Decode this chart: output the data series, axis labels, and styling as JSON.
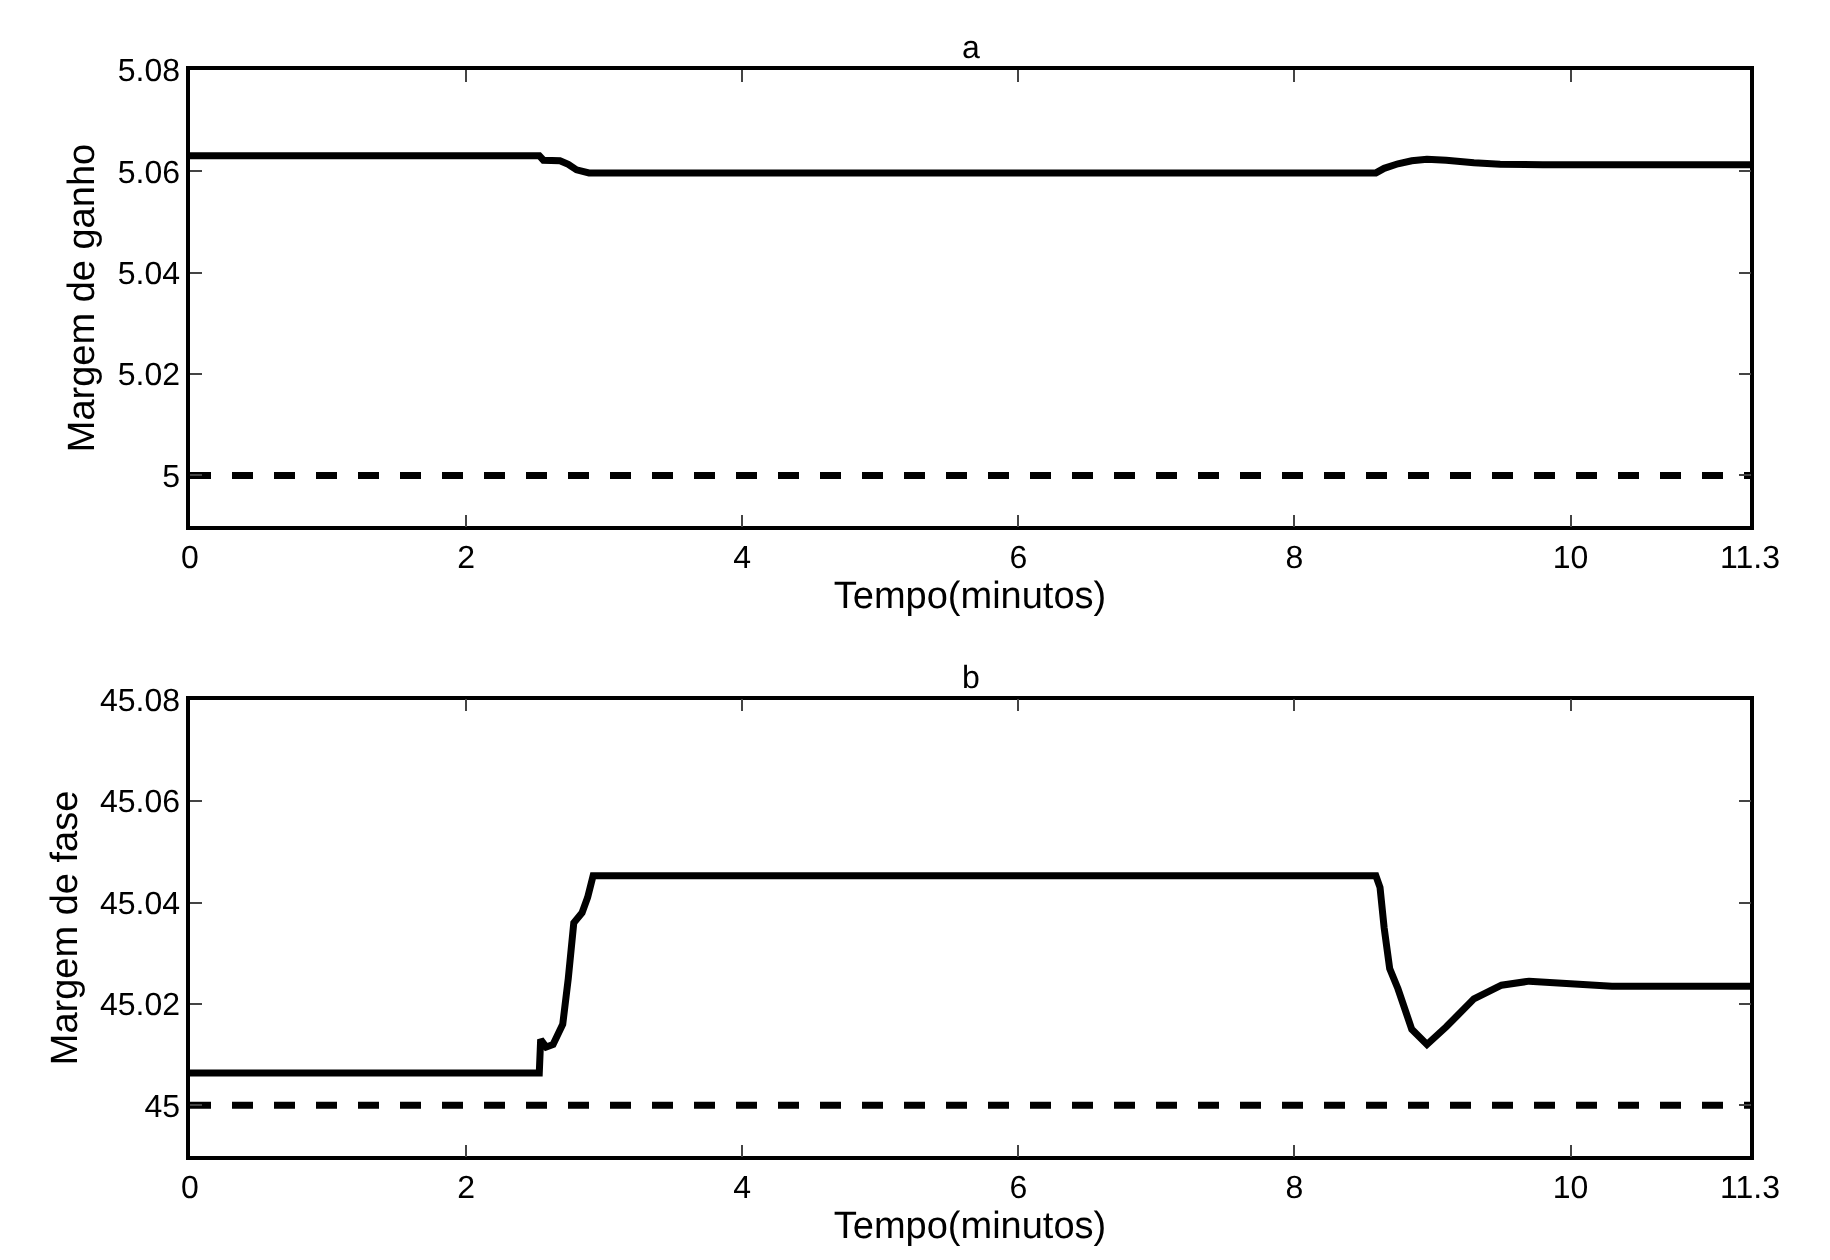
{
  "chart_data": [
    {
      "type": "line",
      "title": "a",
      "xlabel": "Tempo(minutos)",
      "ylabel": "Margem de ganho",
      "xlim": [
        0,
        11.3
      ],
      "xticks": [
        0,
        2,
        4,
        6,
        8,
        10,
        11.3
      ],
      "ylim": [
        4.99,
        5.08
      ],
      "yticks": [
        5,
        5.02,
        5.04,
        5.06,
        5.08
      ],
      "marker": "none",
      "series": [
        {
          "color": "#000000",
          "line_style": "solid",
          "x": [
            0,
            1,
            2,
            2.53,
            2.56,
            2.68,
            2.74,
            2.8,
            2.89,
            3.5,
            5,
            7,
            8.59,
            8.65,
            8.75,
            8.85,
            8.96,
            9.1,
            9.3,
            9.49,
            9.8,
            10.3,
            11.3
          ],
          "values": [
            5.0631,
            5.0631,
            5.0631,
            5.0631,
            5.0622,
            5.0621,
            5.0614,
            5.0603,
            5.0597,
            5.0597,
            5.0597,
            5.0597,
            5.0597,
            5.0606,
            5.0615,
            5.0621,
            5.0624,
            5.0622,
            5.0617,
            5.0614,
            5.0613,
            5.0613,
            5.0613
          ]
        }
      ],
      "ref_lines": [
        {
          "axis": "y",
          "value": 5,
          "color": "#000000",
          "line_style": "dashed"
        }
      ]
    },
    {
      "type": "line",
      "title": "b",
      "xlabel": "Tempo(minutos)",
      "ylabel": "Margem de fase",
      "xlim": [
        0,
        11.3
      ],
      "xticks": [
        0,
        2,
        4,
        6,
        8,
        10,
        11.3
      ],
      "ylim": [
        44.99,
        45.08
      ],
      "yticks": [
        45,
        45.02,
        45.04,
        45.06,
        45.08
      ],
      "marker": "none",
      "series": [
        {
          "color": "#000000",
          "line_style": "solid",
          "x": [
            0,
            1,
            2,
            2.53,
            2.54,
            2.58,
            2.63,
            2.7,
            2.74,
            2.78,
            2.84,
            2.88,
            2.92,
            3.5,
            5,
            7,
            8.59,
            8.62,
            8.65,
            8.69,
            8.75,
            8.85,
            8.96,
            9.1,
            9.3,
            9.5,
            9.7,
            10,
            10.3,
            11.3
          ],
          "values": [
            45.0064,
            45.0064,
            45.0064,
            45.0064,
            45.013,
            45.0115,
            45.012,
            45.016,
            45.025,
            45.036,
            45.038,
            45.041,
            45.0453,
            45.0453,
            45.0453,
            45.0453,
            45.0453,
            45.043,
            45.035,
            45.027,
            45.023,
            45.015,
            45.012,
            45.0155,
            45.021,
            45.0237,
            45.0245,
            45.024,
            45.0235,
            45.0235
          ]
        }
      ],
      "ref_lines": [
        {
          "axis": "y",
          "value": 45,
          "color": "#000000",
          "line_style": "dashed"
        }
      ]
    }
  ]
}
